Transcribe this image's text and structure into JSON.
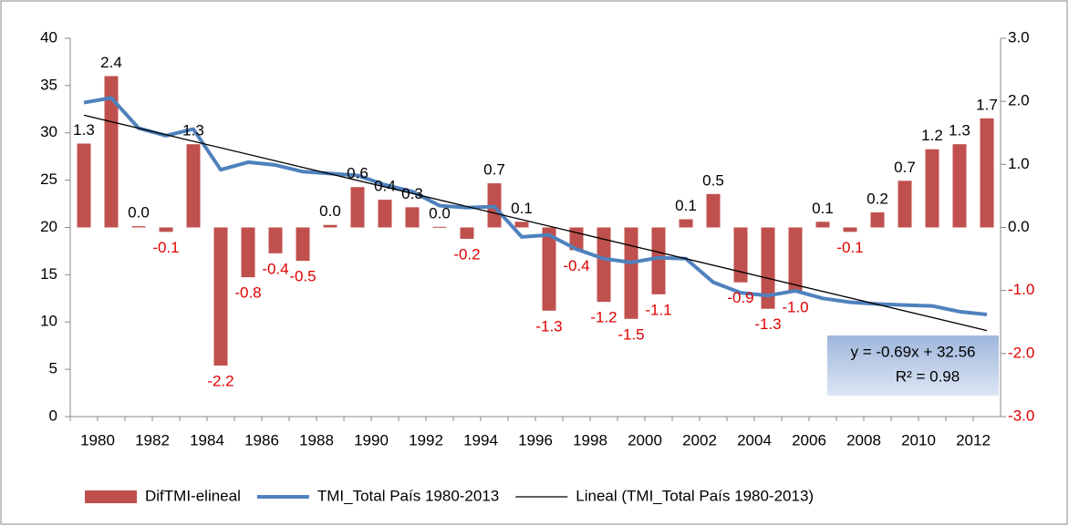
{
  "chart_data": {
    "type": "combo",
    "categories": [
      "1980",
      null,
      "1982",
      null,
      "1984",
      null,
      "1986",
      null,
      "1988",
      null,
      "1990",
      null,
      "1992",
      null,
      "1994",
      null,
      "1996",
      null,
      "1998",
      null,
      "2000",
      null,
      "2002",
      null,
      "2004",
      null,
      "2006",
      null,
      "2008",
      null,
      "2010",
      null,
      "2012",
      null
    ],
    "series": [
      {
        "name": "DifTMI-elineal",
        "type": "bar",
        "axis": "y2",
        "color": "#c0504d",
        "values": [
          1.33,
          2.4,
          0.02,
          -0.07,
          1.32,
          -2.19,
          -0.79,
          -0.41,
          -0.53,
          0.04,
          0.64,
          0.44,
          0.32,
          0.01,
          -0.18,
          0.7,
          0.09,
          -1.32,
          -0.36,
          -1.18,
          -1.45,
          -1.06,
          0.13,
          0.53,
          -0.87,
          -1.29,
          -1.02,
          0.09,
          -0.07,
          0.24,
          0.74,
          1.24,
          1.32,
          1.73
        ],
        "value_labels": [
          "1.3",
          "2.4",
          "0.0",
          "-0.1",
          "1.3",
          "-2.2",
          "-0.8",
          "-0.4",
          "-0.5",
          "0.0",
          "0.6",
          "0.4",
          "0.3",
          "0.0",
          "-0.2",
          "0.7",
          "0.1",
          "-1.3",
          "-0.4",
          "-1.2",
          "-1.5",
          "-1.1",
          "0.1",
          "0.5",
          "-0.9",
          "-1.3",
          "-1.0",
          "0.1",
          "-0.1",
          "0.2",
          "0.7",
          "1.2",
          "1.3",
          "1.7"
        ]
      },
      {
        "name": "TMI_Total País 1980-2013",
        "type": "line",
        "color": "#4f81bd",
        "values": [
          33.2,
          33.7,
          30.5,
          29.7,
          30.4,
          26.1,
          26.9,
          26.6,
          25.9,
          25.7,
          25.5,
          24.5,
          23.8,
          22.3,
          22.1,
          22.2,
          19.0,
          19.2,
          17.7,
          16.7,
          16.3,
          16.8,
          16.7,
          14.2,
          13.1,
          12.8,
          13.3,
          12.5,
          12.1,
          11.9,
          11.8,
          11.7,
          11.1,
          10.8
        ]
      }
    ],
    "trendline": {
      "name": "Lineal (TMI_Total País 1980-2013)",
      "color": "#000000",
      "slope": -0.69,
      "intercept": 32.56,
      "equation": "y = -0.69x + 32.56",
      "r_squared": "R² = 0.98"
    },
    "ylim": [
      0,
      40
    ],
    "yticks": [
      0,
      5,
      10,
      15,
      20,
      25,
      30,
      35,
      40
    ],
    "y2lim": [
      -3,
      3
    ],
    "y2ticks": [
      {
        "value": -3,
        "label": "-3.0"
      },
      {
        "value": -2,
        "label": "-2.0"
      },
      {
        "value": -1,
        "label": "-1.0"
      },
      {
        "value": 0,
        "label": "0.0"
      },
      {
        "value": 1,
        "label": "1.0"
      },
      {
        "value": 2,
        "label": "2.0"
      },
      {
        "value": 3,
        "label": "3.0"
      }
    ],
    "legend": "bottom",
    "grid": false
  }
}
